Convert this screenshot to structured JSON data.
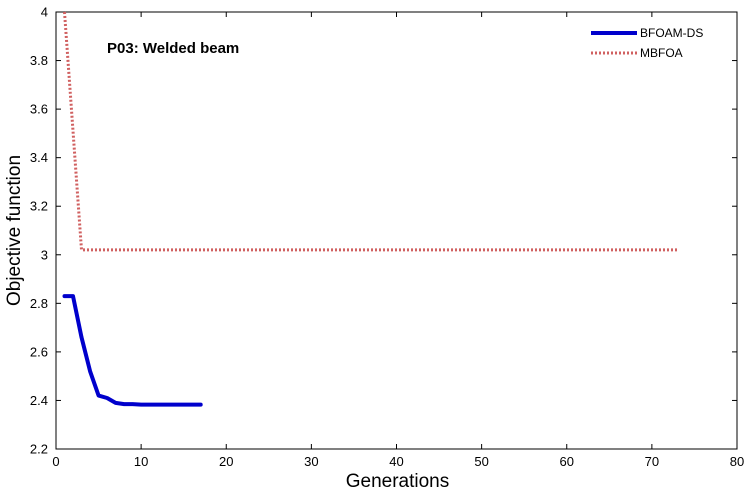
{
  "chart_data": {
    "type": "line",
    "title": "",
    "annotation": "P03: Welded beam",
    "xlabel": "Generations",
    "ylabel": "Objective function",
    "xlim": [
      0,
      80
    ],
    "ylim": [
      2.2,
      4
    ],
    "xticks": [
      "0",
      "10",
      "20",
      "30",
      "40",
      "50",
      "60",
      "70",
      "80"
    ],
    "yticks": [
      "2.2",
      "2.4",
      "2.6",
      "2.8",
      "3",
      "3.2",
      "3.4",
      "3.6",
      "3.8",
      "4"
    ],
    "grid": false,
    "legend_position": "top-right",
    "series": [
      {
        "name": "BFOAM-DS",
        "color": "#0000cc",
        "style": "solid",
        "x": [
          1,
          2,
          3,
          4,
          5,
          6,
          7,
          8,
          9,
          10,
          17
        ],
        "y": [
          2.83,
          2.83,
          2.66,
          2.52,
          2.42,
          2.41,
          2.39,
          2.385,
          2.385,
          2.383,
          2.383
        ]
      },
      {
        "name": "MBFOA",
        "color": "#d06060",
        "style": "dotted",
        "x": [
          1,
          3,
          73
        ],
        "y": [
          4.0,
          3.02,
          3.02
        ]
      }
    ]
  }
}
